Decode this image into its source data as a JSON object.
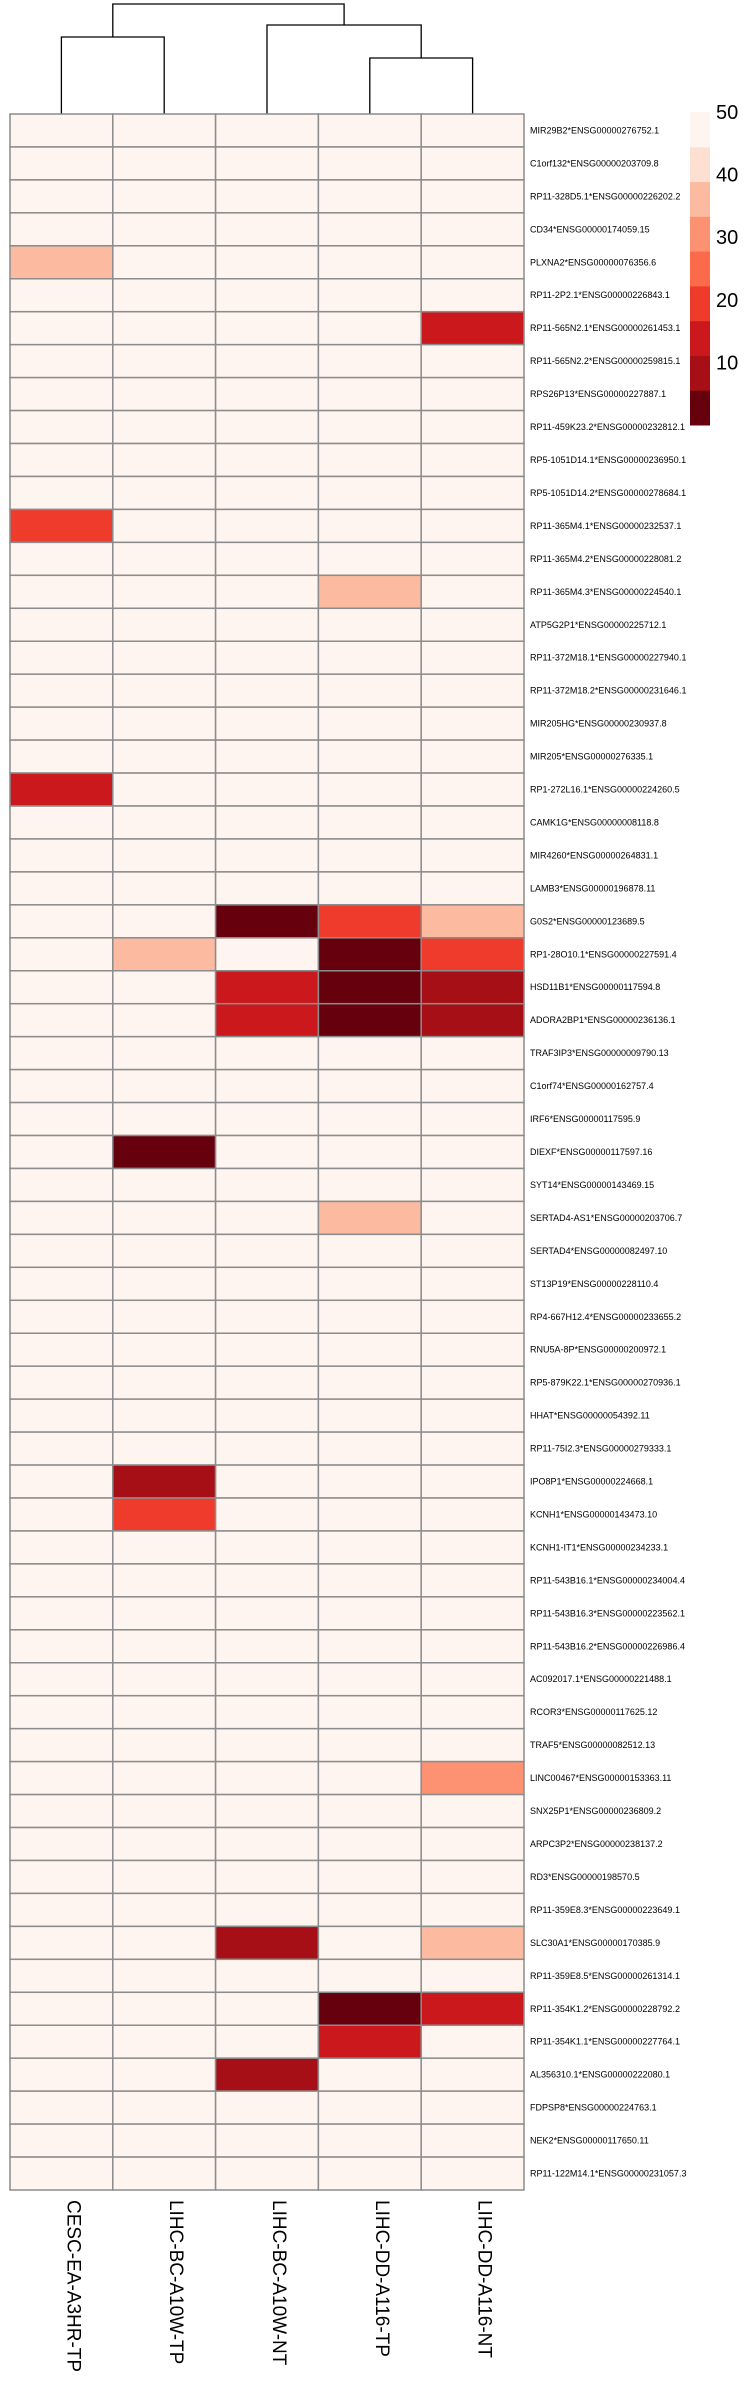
{
  "chart_data": {
    "type": "heatmap",
    "columns": [
      "CESC-EA-A3HR-TP",
      "LIHC-BC-A10W-TP",
      "LIHC-BC-A10W-NT",
      "LIHC-DD-A116-TP",
      "LIHC-DD-A116-NT"
    ],
    "rows": [
      "MIR29B2*ENSG00000276752.1",
      "C1orf132*ENSG00000203709.8",
      "RP11-328D5.1*ENSG00000226202.2",
      "CD34*ENSG00000174059.15",
      "PLXNA2*ENSG00000076356.6",
      "RP11-2P2.1*ENSG00000226843.1",
      "RP11-565N2.1*ENSG00000261453.1",
      "RP11-565N2.2*ENSG00000259815.1",
      "RPS26P13*ENSG00000227887.1",
      "RP11-459K23.2*ENSG00000232812.1",
      "RP5-1051D14.1*ENSG00000236950.1",
      "RP5-1051D14.2*ENSG00000278684.1",
      "RP11-365M4.1*ENSG00000232537.1",
      "RP11-365M4.2*ENSG00000228081.2",
      "RP11-365M4.3*ENSG00000224540.1",
      "ATP5G2P1*ENSG00000225712.1",
      "RP11-372M18.1*ENSG00000227940.1",
      "RP11-372M18.2*ENSG00000231646.1",
      "MIR205HG*ENSG00000230937.8",
      "MIR205*ENSG00000276335.1",
      "RP1-272L16.1*ENSG00000224260.5",
      "CAMK1G*ENSG00000008118.8",
      "MIR4260*ENSG00000264831.1",
      "LAMB3*ENSG00000196878.11",
      "G0S2*ENSG00000123689.5",
      "RP1-28O10.1*ENSG00000227591.4",
      "HSD11B1*ENSG00000117594.8",
      "ADORA2BP1*ENSG00000236136.1",
      "TRAF3IP3*ENSG00000009790.13",
      "C1orf74*ENSG00000162757.4",
      "IRF6*ENSG00000117595.9",
      "DIEXF*ENSG00000117597.16",
      "SYT14*ENSG00000143469.15",
      "SERTAD4-AS1*ENSG00000203706.7",
      "SERTAD4*ENSG00000082497.10",
      "ST13P19*ENSG00000228110.4",
      "RP4-667H12.4*ENSG00000233655.2",
      "RNU5A-8P*ENSG00000200972.1",
      "RP5-879K22.1*ENSG00000270936.1",
      "HHAT*ENSG00000054392.11",
      "RP11-75I2.3*ENSG00000279333.1",
      "IPO8P1*ENSG00000224668.1",
      "KCNH1*ENSG00000143473.10",
      "KCNH1-IT1*ENSG00000234233.1",
      "RP11-543B16.1*ENSG00000234004.4",
      "RP11-543B16.3*ENSG00000223562.1",
      "RP11-543B16.2*ENSG00000226986.4",
      "AC092017.1*ENSG00000221488.1",
      "RCOR3*ENSG00000117625.12",
      "TRAF5*ENSG00000082512.13",
      "LINC00467*ENSG00000153363.11",
      "SNX25P1*ENSG00000236809.2",
      "ARPC3P2*ENSG00000238137.2",
      "RD3*ENSG00000198570.5",
      "RP11-359E8.3*ENSG00000223649.1",
      "SLC30A1*ENSG00000170385.9",
      "RP11-359E8.5*ENSG00000261314.1",
      "RP11-354K1.2*ENSG00000228792.2",
      "RP11-354K1.1*ENSG00000227764.1",
      "AL356310.1*ENSG00000222080.1",
      "FDPSP8*ENSG00000224763.1",
      "NEK2*ENSG00000117650.11",
      "RP11-122M14.1*ENSG00000231057.3"
    ],
    "values": [
      [
        50,
        50,
        50,
        50,
        50
      ],
      [
        50,
        50,
        50,
        50,
        50
      ],
      [
        50,
        50,
        50,
        50,
        50
      ],
      [
        50,
        50,
        50,
        50,
        50
      ],
      [
        38,
        50,
        50,
        50,
        50
      ],
      [
        50,
        50,
        50,
        50,
        50
      ],
      [
        50,
        50,
        50,
        50,
        12
      ],
      [
        50,
        50,
        50,
        50,
        50
      ],
      [
        50,
        50,
        50,
        50,
        50
      ],
      [
        50,
        50,
        50,
        50,
        50
      ],
      [
        50,
        50,
        50,
        50,
        50
      ],
      [
        50,
        50,
        50,
        50,
        50
      ],
      [
        19,
        50,
        50,
        50,
        50
      ],
      [
        50,
        50,
        50,
        50,
        50
      ],
      [
        50,
        50,
        50,
        38,
        50
      ],
      [
        50,
        50,
        50,
        50,
        50
      ],
      [
        50,
        50,
        50,
        50,
        50
      ],
      [
        50,
        50,
        50,
        50,
        50
      ],
      [
        50,
        50,
        50,
        50,
        50
      ],
      [
        50,
        50,
        50,
        50,
        50
      ],
      [
        13,
        50,
        50,
        50,
        50
      ],
      [
        50,
        50,
        50,
        50,
        50
      ],
      [
        50,
        50,
        50,
        50,
        50
      ],
      [
        50,
        50,
        50,
        50,
        50
      ],
      [
        50,
        50,
        3,
        19,
        38
      ],
      [
        50,
        38,
        50,
        3,
        19
      ],
      [
        50,
        50,
        13,
        3,
        10
      ],
      [
        50,
        50,
        13,
        3,
        10
      ],
      [
        50,
        50,
        50,
        50,
        50
      ],
      [
        50,
        50,
        50,
        50,
        50
      ],
      [
        50,
        50,
        50,
        50,
        50
      ],
      [
        50,
        3,
        50,
        50,
        50
      ],
      [
        50,
        50,
        50,
        50,
        50
      ],
      [
        50,
        50,
        50,
        38,
        50
      ],
      [
        50,
        50,
        50,
        50,
        50
      ],
      [
        50,
        50,
        50,
        50,
        50
      ],
      [
        50,
        50,
        50,
        50,
        50
      ],
      [
        50,
        50,
        50,
        50,
        50
      ],
      [
        50,
        50,
        50,
        50,
        50
      ],
      [
        50,
        50,
        50,
        50,
        50
      ],
      [
        50,
        50,
        50,
        50,
        50
      ],
      [
        50,
        10,
        50,
        50,
        50
      ],
      [
        50,
        19,
        50,
        50,
        50
      ],
      [
        50,
        50,
        50,
        50,
        50
      ],
      [
        50,
        50,
        50,
        50,
        50
      ],
      [
        50,
        50,
        50,
        50,
        50
      ],
      [
        50,
        50,
        50,
        50,
        50
      ],
      [
        50,
        50,
        50,
        50,
        50
      ],
      [
        50,
        50,
        50,
        50,
        50
      ],
      [
        50,
        50,
        50,
        50,
        50
      ],
      [
        50,
        50,
        50,
        50,
        30
      ],
      [
        50,
        50,
        50,
        50,
        50
      ],
      [
        50,
        50,
        50,
        50,
        50
      ],
      [
        50,
        50,
        50,
        50,
        50
      ],
      [
        50,
        50,
        50,
        50,
        50
      ],
      [
        50,
        50,
        10,
        50,
        38
      ],
      [
        50,
        50,
        50,
        50,
        50
      ],
      [
        50,
        50,
        50,
        3,
        12
      ],
      [
        50,
        50,
        50,
        12,
        50
      ],
      [
        50,
        50,
        10,
        50,
        50
      ],
      [
        50,
        50,
        50,
        50,
        50
      ],
      [
        50,
        50,
        50,
        50,
        50
      ],
      [
        50,
        50,
        50,
        50,
        50
      ]
    ],
    "legend": {
      "ticks": [
        10,
        20,
        30,
        40,
        50
      ],
      "colors": [
        "#67000d",
        "#a50f15",
        "#cb181d",
        "#ef3b2c",
        "#fb6a4a",
        "#fc9272",
        "#fcbba1",
        "#fee0d2",
        "#fff5f0"
      ]
    },
    "dendrogram": [
      [
        1,
        0
      ],
      [
        2,
        1
      ],
      [
        3,
        4
      ],
      [
        4,
        2
      ],
      [
        5,
        3
      ]
    ],
    "legend_position": "top-right"
  }
}
